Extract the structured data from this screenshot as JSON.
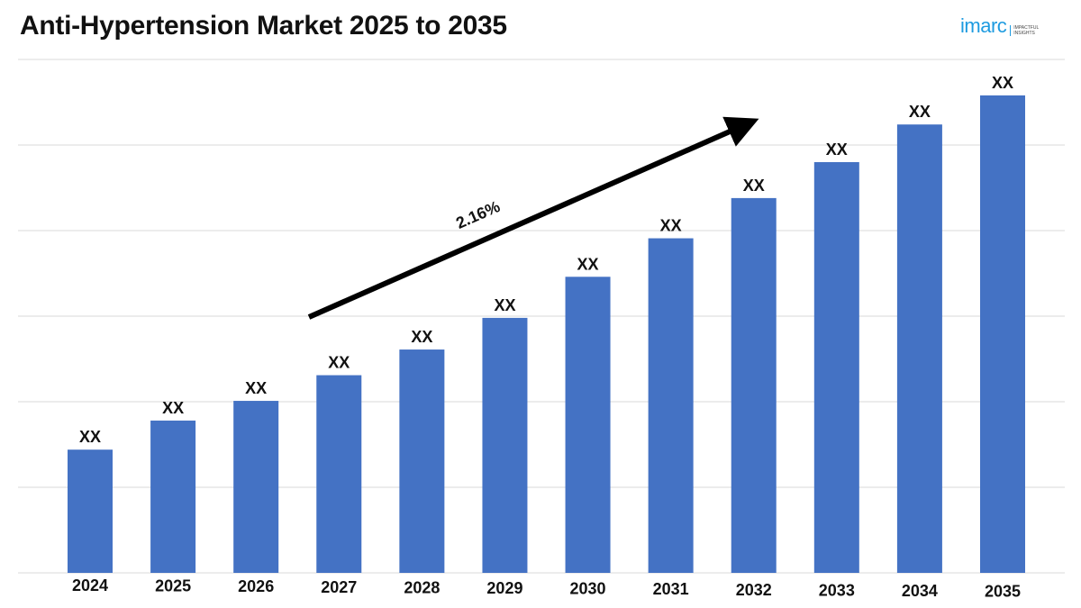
{
  "header": {
    "title": "Anti-Hypertension Market 2025 to 2035",
    "logo_text": "imarc",
    "logo_tagline": "IMPACTFUL INSIGHTS"
  },
  "colors": {
    "bar": "#4472c4",
    "grid": "#d9d9d9",
    "arrow": "#000000",
    "logo": "#1e9be0"
  },
  "chart_data": {
    "type": "bar",
    "title": "Anti-Hypertension Market 2025 to 2035",
    "categories": [
      "2024",
      "2025",
      "2026",
      "2027",
      "2028",
      "2029",
      "2030",
      "2031",
      "2032",
      "2033",
      "2034",
      "2035"
    ],
    "values": [
      14.4,
      17.8,
      20.1,
      23.1,
      26.1,
      29.8,
      34.6,
      39.1,
      43.8,
      48.0,
      52.4,
      55.8
    ],
    "data_labels": [
      "XX",
      "XX",
      "XX",
      "XX",
      "XX",
      "XX",
      "XX",
      "XX",
      "XX",
      "XX",
      "XX",
      "XX"
    ],
    "ylim": [
      0,
      60
    ],
    "yticks_shown": false,
    "grid": true,
    "annotation": {
      "text": "2.16%",
      "shape": "arrow-up-right",
      "from_category": "2027",
      "to_category": "2033"
    }
  }
}
